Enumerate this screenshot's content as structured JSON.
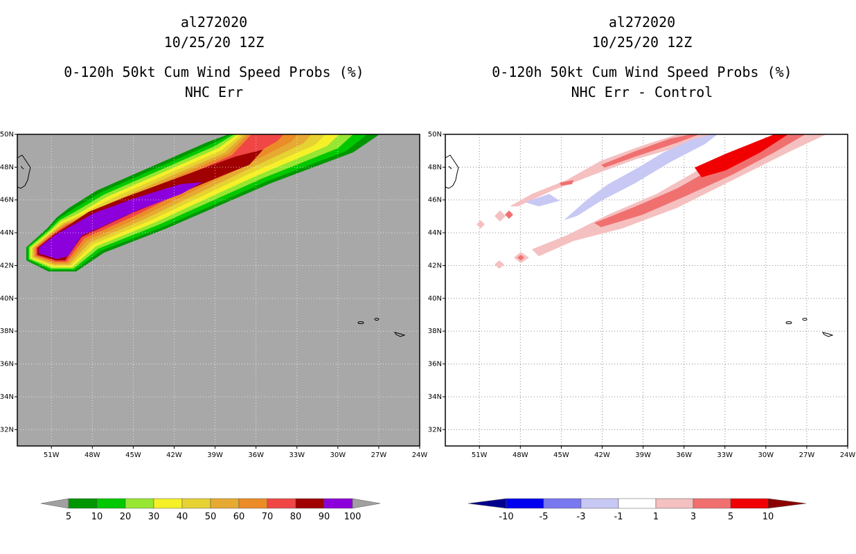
{
  "left_panel": {
    "title": {
      "storm_id": "al272020",
      "datetime": "10/25/20 12Z",
      "product": "0-120h 50kt Cum Wind Speed Probs (%)",
      "subtitle": "NHC Err"
    },
    "colorbar": {
      "labels": [
        "5",
        "10",
        "20",
        "30",
        "40",
        "50",
        "60",
        "70",
        "80",
        "90",
        "100"
      ],
      "colors": [
        "#009600",
        "#00c800",
        "#96e632",
        "#f5f028",
        "#e6d232",
        "#e6aa32",
        "#eb8c28",
        "#f04646",
        "#a00000",
        "#8c00dc"
      ],
      "end_color": "#a0a0a0"
    },
    "background_color": "#a8a8a8"
  },
  "right_panel": {
    "title": {
      "storm_id": "al272020",
      "datetime": "10/25/20 12Z",
      "product": "0-120h 50kt Cum Wind Speed Probs (%)",
      "subtitle": "NHC Err - Control"
    },
    "colorbar": {
      "labels": [
        "-10",
        "-5",
        "-3",
        "-1",
        "1",
        "3",
        "5",
        "10"
      ],
      "colors": [
        "#0000f0",
        "#7878f0",
        "#c8c8f5",
        "#ffffff",
        "#f5c0c0",
        "#f07070",
        "#f00000"
      ],
      "low_color": "#00008c",
      "high_color": "#8c0000"
    }
  },
  "chart_data": [
    {
      "type": "heatmap",
      "title": "0-120h 50kt Cum Wind Speed Probs (%) — NHC Err",
      "x_ticks": [
        "51W",
        "48W",
        "45W",
        "42W",
        "39W",
        "36W",
        "33W",
        "30W",
        "27W",
        "24W"
      ],
      "y_ticks": [
        "50N",
        "48N",
        "46N",
        "44N",
        "42N",
        "40N",
        "38N",
        "36N",
        "34N",
        "32N"
      ],
      "xlim": [
        -53.5,
        -24
      ],
      "ylim": [
        31,
        50
      ],
      "swath_centerline": [
        [
          -52.5,
          42.4
        ],
        [
          -48,
          44.4
        ],
        [
          -42,
          46.5
        ],
        [
          -36,
          48.4
        ],
        [
          -31,
          50
        ]
      ],
      "max_probability": 100
    },
    {
      "type": "heatmap",
      "title": "0-120h 50kt Cum Wind Speed Probs (%) — NHC Err - Control",
      "x_ticks": [
        "51W",
        "48W",
        "45W",
        "42W",
        "39W",
        "36W",
        "33W",
        "30W",
        "27W",
        "24W"
      ],
      "y_ticks": [
        "50N",
        "48N",
        "46N",
        "44N",
        "42N",
        "40N",
        "38N",
        "36N",
        "34N",
        "32N"
      ],
      "xlim": [
        -53.5,
        -24
      ],
      "ylim": [
        31,
        50
      ],
      "difference_range": [
        -10,
        10
      ]
    }
  ]
}
